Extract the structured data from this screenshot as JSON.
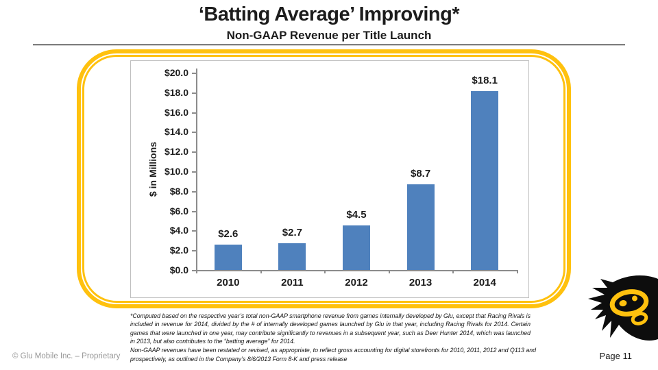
{
  "slide": {
    "title": "‘Batting Average’ Improving*",
    "subtitle": "Non-GAAP Revenue per Title Launch",
    "footnote1": "*Computed based on the respective year’s total non-GAAP smartphone revenue from games internally developed by Glu, except that Racing Rivals is included in revenue for 2014, divided by the # of internally developed games launched by Glu in that year, including Racing Rivals for 2014.  Certain games that were launched in one year, may contribute significantly to revenues in a subsequent year, such as Deer Hunter 2014, which was launched in 2013, but also contributes to the “batting average” for 2014.",
    "footnote2": "Non-GAAP revenues have been restated or revised, as appropriate, to reflect gross accounting for digital storefronts for 2010, 2011, 2012  and Q113 and prospectively, as outlined in the Company’s 8/6/2013 Form 8-K and press release",
    "footer_left": "© Glu Mobile Inc. – Proprietary",
    "page_label": "Page 11"
  },
  "colors": {
    "bar": "#4f81bd",
    "accent_yellow": "#ffc10e",
    "rule_gray": "#7f7f7f",
    "axis_gray": "#8c8c8c",
    "chart_border": "#bfbfbf",
    "footer_gray": "#979797"
  },
  "icons": {
    "logo": "glu-ink-splat-logo"
  },
  "chart_data": {
    "type": "bar",
    "categories": [
      "2010",
      "2011",
      "2012",
      "2013",
      "2014"
    ],
    "values": [
      2.6,
      2.7,
      4.5,
      8.7,
      18.1
    ],
    "bar_labels": [
      "$2.6",
      "$2.7",
      "$4.5",
      "$8.7",
      "$18.1"
    ],
    "title": "Non-GAAP Revenue per Title Launch",
    "xlabel": "",
    "ylabel": "$ in Millions",
    "ylim": [
      0,
      20
    ],
    "ytick_step": 2,
    "ytick_labels": [
      "$20.0",
      "$18.0",
      "$16.0",
      "$14.0",
      "$12.0",
      "$10.0",
      "$8.0",
      "$6.0",
      "$4.0",
      "$2.0",
      "$0.0"
    ],
    "grid": false,
    "legend": "none",
    "bar_color": "#4f81bd"
  }
}
